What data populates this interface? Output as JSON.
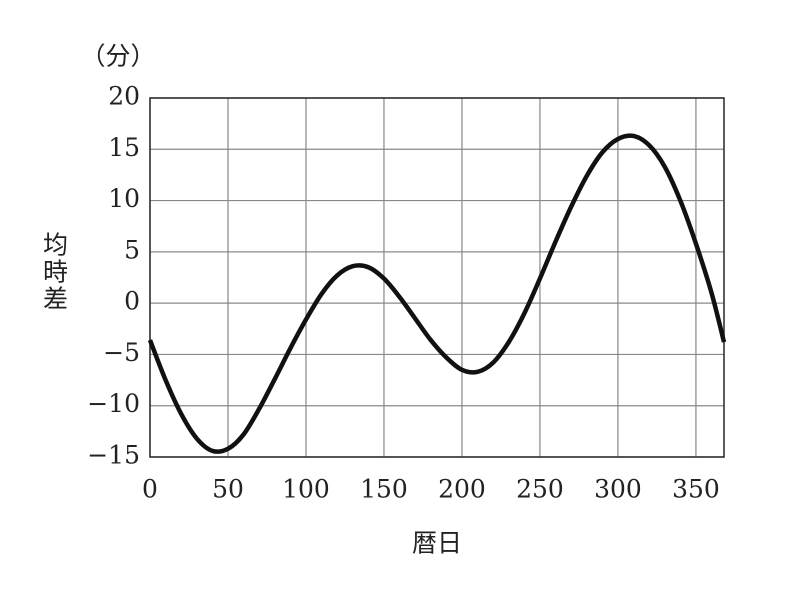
{
  "chart_data": {
    "type": "line",
    "y_unit": "（分）",
    "y_label": "均時差",
    "x_label": "暦日",
    "x": [
      0,
      10,
      20,
      30,
      40,
      50,
      60,
      70,
      80,
      90,
      100,
      110,
      120,
      130,
      140,
      150,
      160,
      170,
      180,
      190,
      200,
      210,
      220,
      230,
      240,
      250,
      260,
      270,
      280,
      290,
      300,
      310,
      320,
      330,
      340,
      350,
      360,
      368
    ],
    "series": [
      {
        "color": "#111111",
        "values": [
          -3.6,
          -7.5,
          -10.8,
          -13.2,
          -14.4,
          -14.2,
          -12.8,
          -10.3,
          -7.4,
          -4.4,
          -1.6,
          0.9,
          2.7,
          3.6,
          3.5,
          2.4,
          0.6,
          -1.5,
          -3.6,
          -5.3,
          -6.5,
          -6.7,
          -5.8,
          -3.8,
          -1.0,
          2.4,
          6.0,
          9.4,
          12.4,
          14.7,
          16.0,
          16.3,
          15.4,
          13.3,
          10.0,
          5.8,
          1.0,
          -3.8
        ]
      }
    ],
    "xlim": [
      0,
      368
    ],
    "ylim": [
      -15,
      20
    ],
    "xticks": [
      0,
      50,
      100,
      150,
      200,
      250,
      300,
      350
    ],
    "yticks": [
      {
        "value": -15,
        "label": "−15"
      },
      {
        "value": -10,
        "label": "−10"
      },
      {
        "value": -5,
        "label": "−5"
      },
      0,
      5,
      10,
      15,
      20
    ],
    "grid": true
  }
}
